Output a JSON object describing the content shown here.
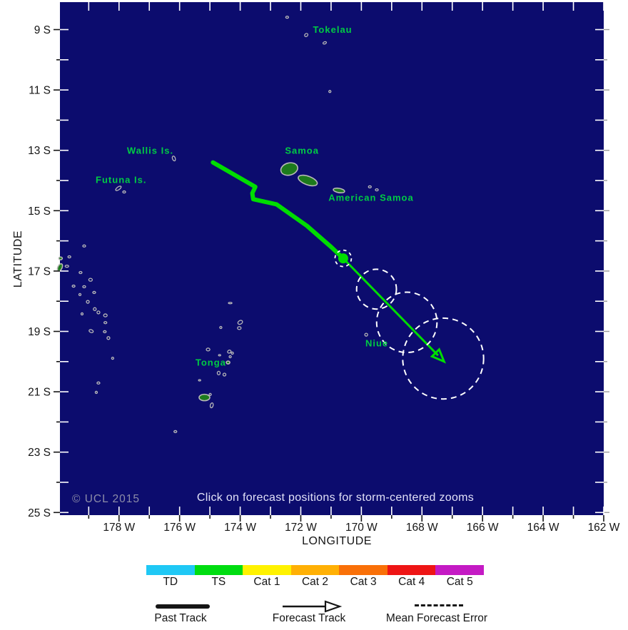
{
  "map": {
    "click_note": "Click on forecast positions for storm-centered zooms",
    "copyright": "© UCL 2015",
    "colors": {
      "sea": "#0c0c6e",
      "land": "#1d7a1d",
      "island_outline": "#b9b9b9",
      "track": "#00dd00",
      "place_label": "#00cc44",
      "note_text": "#e2e2f8",
      "copyright_text": "#8d8da8",
      "tick_inner": "#ffffff",
      "axis_text": "#151515"
    },
    "axes": {
      "lat": {
        "title": "LATITUDE",
        "tick_labels": [
          "9 S",
          "11 S",
          "13 S",
          "15 S",
          "17 S",
          "19 S",
          "21 S",
          "23 S",
          "25 S"
        ],
        "tick_values": [
          9,
          11,
          13,
          15,
          17,
          19,
          21,
          23,
          25
        ]
      },
      "lon": {
        "title": "LONGITUDE",
        "tick_labels": [
          "178 W",
          "176 W",
          "174 W",
          "172 W",
          "170 W",
          "168 W",
          "166 W",
          "164 W",
          "162 W"
        ],
        "tick_values": [
          178,
          176,
          174,
          172,
          170,
          168,
          166,
          164,
          162
        ]
      }
    },
    "places": [
      {
        "name": "Tokelau",
        "lon": 170.95,
        "lat": 9.0
      },
      {
        "name": "Wallis Is.",
        "lon": 176.97,
        "lat": 13.01
      },
      {
        "name": "Futuna Is.",
        "lon": 177.93,
        "lat": 13.98
      },
      {
        "name": "Samoa",
        "lon": 171.96,
        "lat": 13.01
      },
      {
        "name": "American Samoa",
        "lon": 169.68,
        "lat": 14.57
      },
      {
        "name": "Tonga",
        "lon": 174.97,
        "lat": 20.03
      },
      {
        "name": "Niue",
        "lon": 169.49,
        "lat": 19.39
      }
    ],
    "storm": {
      "past_track": [
        [
          174.9,
          13.4
        ],
        [
          173.5,
          14.21
        ],
        [
          173.6,
          14.42
        ],
        [
          173.57,
          14.62
        ],
        [
          172.8,
          14.79
        ],
        [
          171.8,
          15.5
        ],
        [
          171.0,
          16.2
        ]
      ],
      "current_position": {
        "lon": 170.6,
        "lat": 16.58
      },
      "forecast_track_end": {
        "lon": 167.27,
        "lat": 20.0
      },
      "forecast_positions": [
        {
          "lon": 169.5,
          "lat": 17.6,
          "error_radius_deg": 0.66
        },
        {
          "lon": 168.5,
          "lat": 18.7,
          "error_radius_deg": 1.0
        },
        {
          "lon": 167.3,
          "lat": 19.9,
          "error_radius_deg": 1.34
        }
      ]
    },
    "islands": [
      [
        172.45,
        8.59,
        4,
        3,
        0,
        "atoll"
      ],
      [
        171.82,
        9.18,
        5,
        4,
        -40,
        "atoll"
      ],
      [
        171.21,
        9.44,
        5,
        3,
        -20,
        "atoll"
      ],
      [
        171.04,
        11.05,
        3,
        3,
        0,
        "atoll"
      ],
      [
        176.19,
        13.27,
        4,
        7,
        -20,
        "atoll"
      ],
      [
        178.02,
        14.26,
        9,
        4,
        -35,
        "atoll"
      ],
      [
        177.83,
        14.38,
        4,
        3,
        0,
        "atoll"
      ],
      [
        172.38,
        13.62,
        24,
        17,
        -15,
        "land"
      ],
      [
        171.77,
        14.0,
        28,
        12,
        20,
        "land"
      ],
      [
        170.74,
        14.33,
        16,
        6,
        10,
        "land"
      ],
      [
        169.72,
        14.21,
        4,
        3,
        0,
        "atoll"
      ],
      [
        169.49,
        14.31,
        4,
        3,
        0,
        "atoll"
      ],
      [
        169.84,
        19.11,
        4,
        4,
        0,
        "atoll"
      ],
      [
        174.33,
        18.06,
        5,
        2,
        0,
        "atoll"
      ],
      [
        174.64,
        18.87,
        3,
        3,
        0,
        "atoll"
      ],
      [
        174.0,
        18.7,
        7,
        5,
        -30,
        "atoll"
      ],
      [
        174.03,
        18.89,
        5,
        4,
        0,
        "atoll"
      ],
      [
        175.06,
        19.6,
        5,
        4,
        0,
        "atoll"
      ],
      [
        174.36,
        19.67,
        5,
        4,
        -30,
        "atoll"
      ],
      [
        174.26,
        19.72,
        3,
        3,
        0,
        "atoll"
      ],
      [
        174.33,
        19.84,
        3,
        3,
        0,
        "atoll"
      ],
      [
        174.68,
        19.79,
        3,
        2,
        0,
        "atoll"
      ],
      [
        174.4,
        20.03,
        5,
        4,
        0,
        "land"
      ],
      [
        174.71,
        20.38,
        4,
        5,
        0,
        "atoll"
      ],
      [
        174.52,
        20.43,
        4,
        4,
        0,
        "atoll"
      ],
      [
        175.34,
        20.62,
        3,
        2,
        0,
        "atoll"
      ],
      [
        175.18,
        21.19,
        15,
        9,
        0,
        "land"
      ],
      [
        174.99,
        21.09,
        3,
        3,
        0,
        "atoll"
      ],
      [
        174.94,
        21.45,
        4,
        7,
        15,
        "atoll"
      ],
      [
        176.14,
        22.32,
        4,
        3,
        0,
        "atoll"
      ],
      [
        179.15,
        16.17,
        4,
        3,
        0,
        "atoll"
      ],
      [
        179.64,
        16.53,
        4,
        3,
        0,
        "atoll"
      ],
      [
        179.93,
        16.58,
        5,
        4,
        0,
        "land"
      ],
      [
        179.95,
        16.88,
        6,
        11,
        25,
        "land"
      ],
      [
        179.72,
        16.84,
        5,
        3,
        0,
        "atoll"
      ],
      [
        179.27,
        17.05,
        4,
        3,
        0,
        "atoll"
      ],
      [
        178.94,
        17.29,
        5,
        4,
        0,
        "atoll"
      ],
      [
        179.15,
        17.52,
        4,
        3,
        0,
        "atoll"
      ],
      [
        179.5,
        17.5,
        4,
        3,
        0,
        "atoll"
      ],
      [
        179.29,
        17.78,
        3,
        3,
        0,
        "atoll"
      ],
      [
        178.82,
        17.71,
        4,
        3,
        0,
        "atoll"
      ],
      [
        179.03,
        18.02,
        4,
        4,
        0,
        "atoll"
      ],
      [
        178.8,
        18.26,
        4,
        4,
        0,
        "atoll"
      ],
      [
        178.68,
        18.37,
        4,
        4,
        0,
        "atoll"
      ],
      [
        179.22,
        18.42,
        3,
        3,
        0,
        "atoll"
      ],
      [
        178.45,
        18.47,
        5,
        4,
        0,
        "atoll"
      ],
      [
        178.45,
        18.71,
        4,
        3,
        0,
        "atoll"
      ],
      [
        178.92,
        18.99,
        6,
        4,
        20,
        "atoll"
      ],
      [
        178.47,
        19.01,
        4,
        3,
        0,
        "atoll"
      ],
      [
        178.35,
        19.22,
        4,
        4,
        0,
        "atoll"
      ],
      [
        178.21,
        19.89,
        3,
        3,
        0,
        "atoll"
      ],
      [
        178.68,
        20.71,
        4,
        3,
        0,
        "atoll"
      ],
      [
        178.75,
        21.02,
        3,
        3,
        0,
        "atoll"
      ]
    ]
  },
  "legend": {
    "categories": [
      {
        "label": "TD",
        "color": "#1fc8f5"
      },
      {
        "label": "TS",
        "color": "#00dd11"
      },
      {
        "label": "Cat 1",
        "color": "#fff200"
      },
      {
        "label": "Cat 2",
        "color": "#ffb005"
      },
      {
        "label": "Cat 3",
        "color": "#f97008"
      },
      {
        "label": "Cat 4",
        "color": "#ee1515"
      },
      {
        "label": "Cat 5",
        "color": "#c41ac4"
      }
    ],
    "past_track_label": "Past Track",
    "forecast_track_label": "Forecast Track",
    "mean_forecast_error_label": "Mean Forecast Error"
  }
}
